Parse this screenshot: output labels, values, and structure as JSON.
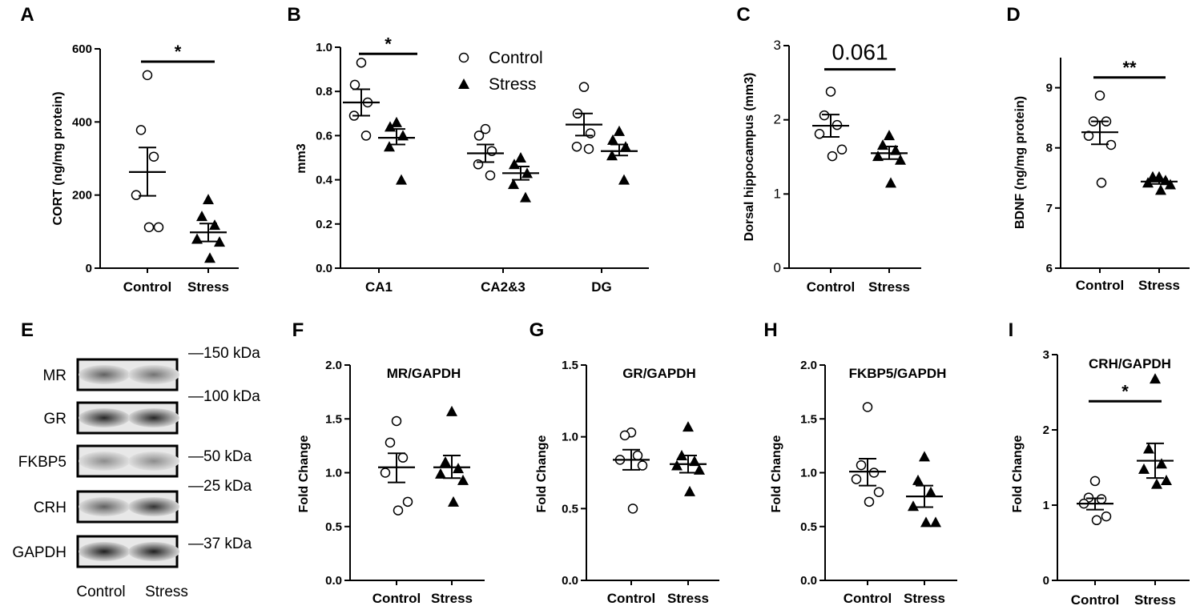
{
  "figure": {
    "western_blot": {
      "panel": "E",
      "lanes": [
        "Control",
        "Stress"
      ],
      "bands": [
        "MR",
        "GR",
        "FKBP5",
        "CRH",
        "GAPDH"
      ],
      "band_darkness": [
        [
          0.62,
          0.55
        ],
        [
          0.85,
          0.85
        ],
        [
          0.45,
          0.45
        ],
        [
          0.62,
          0.8
        ],
        [
          0.88,
          0.88
        ]
      ],
      "markers": [
        "—150 kDa",
        "—100 kDa",
        "—50 kDa",
        "—25 kDa",
        "—37 kDa"
      ]
    }
  },
  "chart_data": [
    {
      "panel": "A",
      "type": "scatter",
      "title": "",
      "ylabel": "CORT (ng/mg protein)",
      "ylim": [
        0,
        600
      ],
      "yticks": [
        "0",
        "200",
        "400",
        "600"
      ],
      "categories": [
        "Control",
        "Stress"
      ],
      "series": [
        {
          "name": "Control",
          "marker": "circle",
          "values": [
            528,
            378,
            305,
            200,
            112,
            112
          ],
          "mean": 263,
          "sem_low": 198,
          "sem_high": 330
        },
        {
          "name": "Stress",
          "marker": "triangle",
          "values": [
            188,
            142,
            118,
            80,
            72,
            28
          ],
          "mean": 98,
          "sem_low": 73,
          "sem_high": 122
        }
      ],
      "significance": [
        {
          "label": "*",
          "from": "Control",
          "to": "Stress",
          "y": 565
        }
      ]
    },
    {
      "panel": "B",
      "type": "scatter",
      "title": "",
      "ylabel": "mm3",
      "ylim": [
        0,
        1.0
      ],
      "yticks": [
        "0.0",
        "0.2",
        "0.4",
        "0.6",
        "0.8",
        "1.0"
      ],
      "categories": [
        "CA1",
        "CA2&3",
        "DG"
      ],
      "series": [
        {
          "name": "Control",
          "marker": "circle",
          "values": [
            [
              0.93,
              0.83,
              0.75,
              0.69,
              0.6
            ],
            [
              0.63,
              0.6,
              0.53,
              0.47,
              0.42
            ],
            [
              0.82,
              0.7,
              0.61,
              0.55,
              0.54
            ]
          ],
          "mean": [
            0.75,
            0.52,
            0.65
          ],
          "sem_low": [
            0.69,
            0.48,
            0.6
          ],
          "sem_high": [
            0.81,
            0.56,
            0.7
          ]
        },
        {
          "name": "Stress",
          "marker": "triangle",
          "values": [
            [
              0.66,
              0.64,
              0.6,
              0.55,
              0.4
            ],
            [
              0.5,
              0.47,
              0.43,
              0.38,
              0.32
            ],
            [
              0.62,
              0.58,
              0.55,
              0.51,
              0.4
            ]
          ],
          "mean": [
            0.59,
            0.43,
            0.53
          ],
          "sem_low": [
            0.56,
            0.4,
            0.51
          ],
          "sem_high": [
            0.63,
            0.46,
            0.56
          ]
        }
      ],
      "legend": [
        "Control",
        "Stress"
      ],
      "significance": [
        {
          "label": "*",
          "category": "CA1",
          "y": 0.97
        }
      ]
    },
    {
      "panel": "C",
      "type": "scatter",
      "title": "",
      "ylabel": "Dorsal hippocampus (mm3)",
      "ylim": [
        0,
        3
      ],
      "yticks": [
        "0",
        "1",
        "2",
        "3"
      ],
      "categories": [
        "Control",
        "Stress"
      ],
      "series": [
        {
          "name": "Control",
          "marker": "circle",
          "values": [
            2.38,
            2.06,
            1.93,
            1.81,
            1.6,
            1.51
          ],
          "mean": 1.92,
          "sem_low": 1.77,
          "sem_high": 2.07
        },
        {
          "name": "Stress",
          "marker": "triangle",
          "values": [
            1.79,
            1.66,
            1.59,
            1.51,
            1.46,
            1.15
          ],
          "mean": 1.55,
          "sem_low": 1.47,
          "sem_high": 1.64
        }
      ],
      "significance": [
        {
          "label": "0.061",
          "from": "Control",
          "to": "Stress",
          "y": 2.68
        }
      ]
    },
    {
      "panel": "D",
      "type": "scatter",
      "title": "",
      "ylabel": "BDNF (ng/mg protein)",
      "ylim": [
        6,
        9.5
      ],
      "yticks": [
        "6",
        "7",
        "8",
        "9"
      ],
      "categories": [
        "Control",
        "Stress"
      ],
      "series": [
        {
          "name": "Control",
          "marker": "circle",
          "values": [
            8.87,
            8.44,
            8.44,
            8.2,
            8.05,
            7.42
          ],
          "mean": 8.26,
          "sem_low": 8.06,
          "sem_high": 8.44
        },
        {
          "name": "Stress",
          "marker": "triangle",
          "values": [
            7.52,
            7.52,
            7.46,
            7.42,
            7.39,
            7.3
          ],
          "mean": 7.44,
          "sem_low": 7.4,
          "sem_high": 7.48
        },
        {
          "name": "",
          "marker": "none",
          "values": []
        }
      ],
      "significance": [
        {
          "label": "**",
          "from": "Control",
          "to": "Stress",
          "y": 9.17
        }
      ]
    },
    {
      "panel": "F",
      "type": "scatter",
      "title": "MR/GAPDH",
      "ylabel": "Fold Change",
      "ylim": [
        0,
        2.0
      ],
      "yticks": [
        "0.0",
        "0.5",
        "1.0",
        "1.5",
        "2.0"
      ],
      "categories": [
        "Control",
        "Stress"
      ],
      "series": [
        {
          "name": "Control",
          "marker": "circle",
          "values": [
            1.48,
            1.28,
            1.14,
            1.0,
            0.73,
            0.65
          ],
          "mean": 1.05,
          "sem_low": 0.91,
          "sem_high": 1.18
        },
        {
          "name": "Stress",
          "marker": "triangle",
          "values": [
            1.57,
            1.1,
            1.04,
            0.99,
            0.93,
            0.73
          ],
          "mean": 1.05,
          "sem_low": 0.95,
          "sem_high": 1.16
        }
      ]
    },
    {
      "panel": "G",
      "type": "scatter",
      "title": "GR/GAPDH",
      "ylabel": "Fold Change",
      "ylim": [
        0,
        1.5
      ],
      "yticks": [
        "0.0",
        "0.5",
        "1.0",
        "1.5"
      ],
      "categories": [
        "Control",
        "Stress"
      ],
      "series": [
        {
          "name": "Control",
          "marker": "circle",
          "values": [
            1.03,
            1.01,
            0.87,
            0.84,
            0.8,
            0.5
          ],
          "mean": 0.84,
          "sem_low": 0.77,
          "sem_high": 0.91
        },
        {
          "name": "Stress",
          "marker": "triangle",
          "values": [
            1.07,
            0.87,
            0.83,
            0.8,
            0.77,
            0.62
          ],
          "mean": 0.81,
          "sem_low": 0.75,
          "sem_high": 0.87
        }
      ]
    },
    {
      "panel": "H",
      "type": "scatter",
      "title": "FKBP5/GAPDH",
      "ylabel": "Fold Change",
      "ylim": [
        0,
        2.0
      ],
      "yticks": [
        "0.0",
        "0.5",
        "1.0",
        "1.5",
        "2.0"
      ],
      "categories": [
        "Control",
        "Stress"
      ],
      "series": [
        {
          "name": "Control",
          "marker": "circle",
          "values": [
            1.61,
            1.07,
            1.0,
            0.94,
            0.82,
            0.73
          ],
          "mean": 1.01,
          "sem_low": 0.88,
          "sem_high": 1.13
        },
        {
          "name": "Stress",
          "marker": "triangle",
          "values": [
            1.15,
            0.93,
            0.82,
            0.69,
            0.54,
            0.54
          ],
          "mean": 0.78,
          "sem_low": 0.68,
          "sem_high": 0.88
        }
      ]
    },
    {
      "panel": "I",
      "type": "scatter",
      "title": "CRH/GAPDH",
      "ylabel": "Fold Change",
      "ylim": [
        0,
        3
      ],
      "yticks": [
        "0",
        "1",
        "2",
        "3"
      ],
      "categories": [
        "Control",
        "Stress"
      ],
      "series": [
        {
          "name": "Control",
          "marker": "circle",
          "values": [
            1.32,
            1.1,
            1.08,
            1.02,
            0.85,
            0.8
          ],
          "mean": 1.02,
          "sem_low": 0.94,
          "sem_high": 1.09
        },
        {
          "name": "Stress",
          "marker": "triangle",
          "values": [
            2.68,
            1.75,
            1.55,
            1.48,
            1.33,
            1.28
          ],
          "mean": 1.59,
          "sem_low": 1.36,
          "sem_high": 1.82
        }
      ],
      "significance": [
        {
          "label": "*",
          "from": "Control",
          "to": "Stress",
          "y": 2.38
        }
      ]
    }
  ]
}
